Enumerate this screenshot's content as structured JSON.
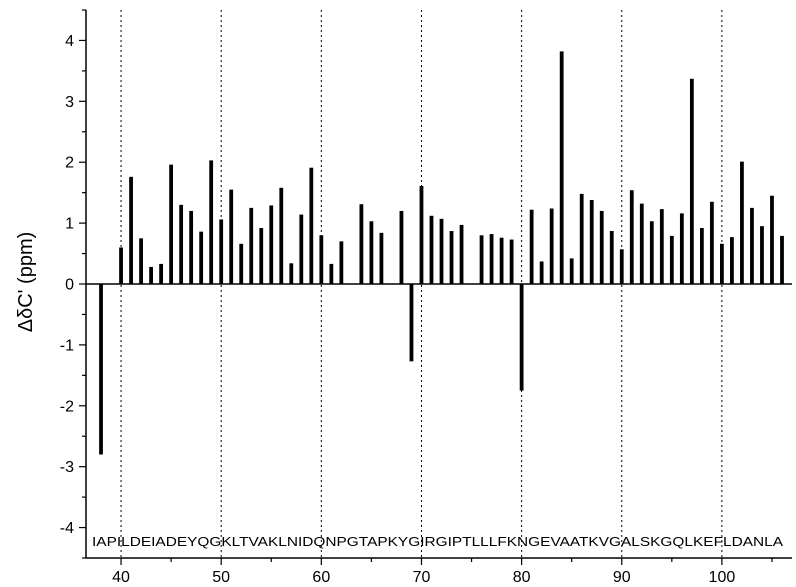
{
  "chart_data": {
    "type": "bar",
    "title": "",
    "xlabel": "",
    "ylabel": "ΔδC' (ppm)",
    "xlim": [
      36.5,
      107
    ],
    "ylim": [
      -4.5,
      4.5
    ],
    "x_ticks": [
      40,
      50,
      60,
      70,
      80,
      90,
      100
    ],
    "y_ticks": [
      -4,
      -3,
      -2,
      -1,
      0,
      1,
      2,
      3,
      4
    ],
    "grid": "dotted vertical lines every 10 residues",
    "sequence_label": "IAPILDEIADEYQGKLTVAKLNIDQNPGTAPKYGIRGIPTLLLFKNGEVAATKVGALSKGQLKEFLDANLA",
    "x": [
      38,
      40,
      41,
      42,
      43,
      44,
      45,
      46,
      47,
      48,
      49,
      50,
      51,
      52,
      53,
      54,
      55,
      56,
      57,
      58,
      59,
      60,
      61,
      62,
      64,
      65,
      66,
      68,
      69,
      70,
      71,
      72,
      73,
      74,
      76,
      77,
      78,
      79,
      80,
      81,
      82,
      83,
      84,
      85,
      86,
      87,
      88,
      89,
      90,
      91,
      92,
      93,
      94,
      95,
      96,
      97,
      98,
      99,
      100,
      101,
      102,
      103,
      104,
      105,
      106
    ],
    "values": [
      -2.8,
      0.6,
      1.76,
      0.75,
      0.28,
      0.33,
      1.96,
      1.3,
      1.2,
      0.86,
      2.03,
      1.06,
      1.55,
      0.66,
      1.25,
      0.92,
      1.29,
      1.58,
      0.34,
      1.14,
      1.91,
      0.8,
      0.33,
      0.7,
      1.31,
      1.03,
      0.84,
      1.2,
      -1.27,
      1.61,
      1.12,
      1.07,
      0.87,
      0.97,
      0.8,
      0.82,
      0.76,
      0.73,
      -1.75,
      1.22,
      0.37,
      1.24,
      3.82,
      0.42,
      1.48,
      1.38,
      1.2,
      0.87,
      0.57,
      1.54,
      1.32,
      1.03,
      1.23,
      0.79,
      1.16,
      3.37,
      0.92,
      1.35,
      0.66,
      0.77,
      2.01,
      1.25,
      0.95,
      1.45,
      0.79
    ]
  }
}
